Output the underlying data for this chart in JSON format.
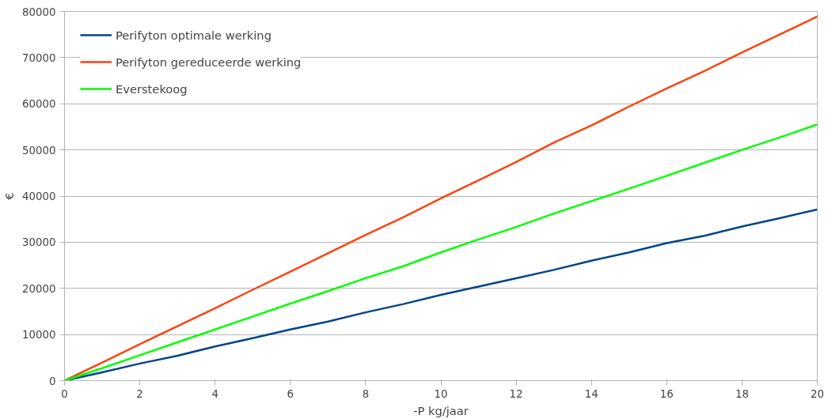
{
  "chart_data": {
    "type": "line",
    "xlabel": "-P kg/jaar",
    "ylabel": "€",
    "x": [
      0,
      1,
      2,
      3,
      4,
      5,
      6,
      7,
      8,
      9,
      10,
      11,
      12,
      13,
      14,
      15,
      16,
      17,
      18,
      19,
      20
    ],
    "series": [
      {
        "name": "Perifyton optimale werking",
        "color": "#004586",
        "values": [
          0,
          1800,
          3700,
          5400,
          7400,
          9200,
          11100,
          12800,
          14800,
          16600,
          18600,
          20400,
          22200,
          24000,
          26000,
          27800,
          29800,
          31400,
          33400,
          35200,
          37100
        ]
      },
      {
        "name": "Perifyton gereduceerde werking",
        "color": "#ff420e",
        "values": [
          0,
          3900,
          7900,
          11800,
          15700,
          19700,
          23600,
          27600,
          31600,
          35400,
          39500,
          43400,
          47400,
          51600,
          55300,
          59400,
          63300,
          67100,
          71100,
          75000,
          78900
        ]
      },
      {
        "name": "Everstekoog",
        "color": "#00ff00",
        "values": [
          0,
          2700,
          5500,
          8300,
          11100,
          13900,
          16700,
          19400,
          22200,
          24800,
          27800,
          30600,
          33300,
          36200,
          38900,
          41600,
          44400,
          47200,
          50000,
          52700,
          55500
        ]
      }
    ],
    "xlim": [
      0,
      20
    ],
    "xticks": [
      0,
      2,
      4,
      6,
      8,
      10,
      12,
      14,
      16,
      18,
      20
    ],
    "ylim": [
      0,
      80000
    ],
    "yticks": [
      0,
      10000,
      20000,
      30000,
      40000,
      50000,
      60000,
      70000,
      80000
    ],
    "grid": "y",
    "legend": "top left",
    "marker": "none",
    "line_style": "solid"
  }
}
